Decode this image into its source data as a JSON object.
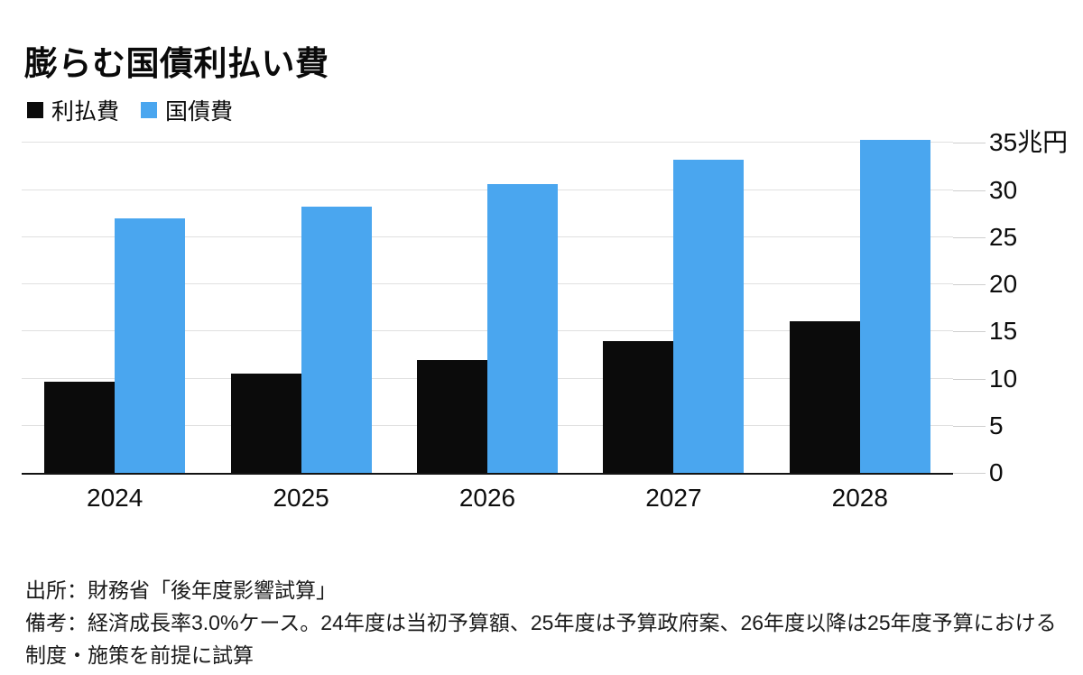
{
  "title": "膨らむ国債利払い費",
  "chart_data": {
    "type": "bar",
    "categories": [
      "2024",
      "2025",
      "2026",
      "2027",
      "2028"
    ],
    "series": [
      {
        "name": "利払費",
        "key": "interest-cost",
        "color": "#0b0b0b",
        "values": [
          9.7,
          10.5,
          12.0,
          14.0,
          16.1
        ]
      },
      {
        "name": "国債費",
        "key": "bond-expenses",
        "color": "#4aa6ef",
        "values": [
          27.0,
          28.2,
          30.6,
          33.2,
          35.3
        ]
      }
    ],
    "unit": "兆円",
    "y_ticks": [
      0,
      5,
      10,
      15,
      20,
      25,
      30,
      35
    ],
    "y_tick_labels": [
      "0",
      "5",
      "10",
      "15",
      "20",
      "25",
      "30",
      "35兆円"
    ],
    "ylim": [
      0,
      35.8
    ],
    "grid": true,
    "value_axis_side": "right",
    "legend_position": "top-left"
  },
  "footer": {
    "source": "出所：財務省「後年度影響試算」",
    "note": "備考：経済成長率3.0%ケース。24年度は当初予算額、25年度は予算政府案、26年度以降は25年度予算における制度・施策を前提に試算"
  }
}
